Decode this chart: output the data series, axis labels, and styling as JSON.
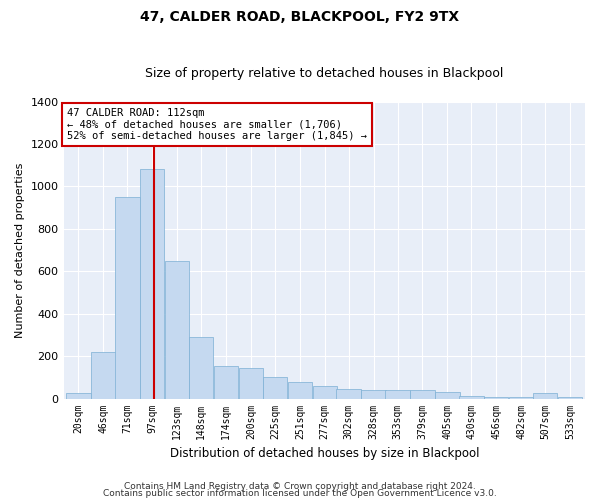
{
  "title": "47, CALDER ROAD, BLACKPOOL, FY2 9TX",
  "subtitle": "Size of property relative to detached houses in Blackpool",
  "xlabel": "Distribution of detached houses by size in Blackpool",
  "ylabel": "Number of detached properties",
  "bins": [
    20,
    46,
    71,
    97,
    123,
    148,
    174,
    200,
    225,
    251,
    277,
    302,
    328,
    353,
    379,
    405,
    430,
    456,
    482,
    507,
    533
  ],
  "bin_labels": [
    "20sqm",
    "46sqm",
    "71sqm",
    "97sqm",
    "123sqm",
    "148sqm",
    "174sqm",
    "200sqm",
    "225sqm",
    "251sqm",
    "277sqm",
    "302sqm",
    "328sqm",
    "353sqm",
    "379sqm",
    "405sqm",
    "430sqm",
    "456sqm",
    "482sqm",
    "507sqm",
    "533sqm"
  ],
  "counts": [
    25,
    220,
    950,
    1080,
    650,
    290,
    155,
    145,
    100,
    80,
    60,
    45,
    40,
    38,
    38,
    32,
    10,
    5,
    5,
    28,
    5
  ],
  "bar_color": "#c5d9f0",
  "bar_edge_color": "#7bafd4",
  "vline_x": 112,
  "vline_color": "#cc0000",
  "annotation_text": "47 CALDER ROAD: 112sqm\n← 48% of detached houses are smaller (1,706)\n52% of semi-detached houses are larger (1,845) →",
  "annotation_box_color": "#ffffff",
  "annotation_box_edge": "#cc0000",
  "ylim": [
    0,
    1400
  ],
  "yticks": [
    0,
    200,
    400,
    600,
    800,
    1000,
    1200,
    1400
  ],
  "bg_color": "#e8eef8",
  "grid_color": "#ffffff",
  "fig_bg_color": "#ffffff",
  "footer1": "Contains HM Land Registry data © Crown copyright and database right 2024.",
  "footer2": "Contains public sector information licensed under the Open Government Licence v3.0."
}
